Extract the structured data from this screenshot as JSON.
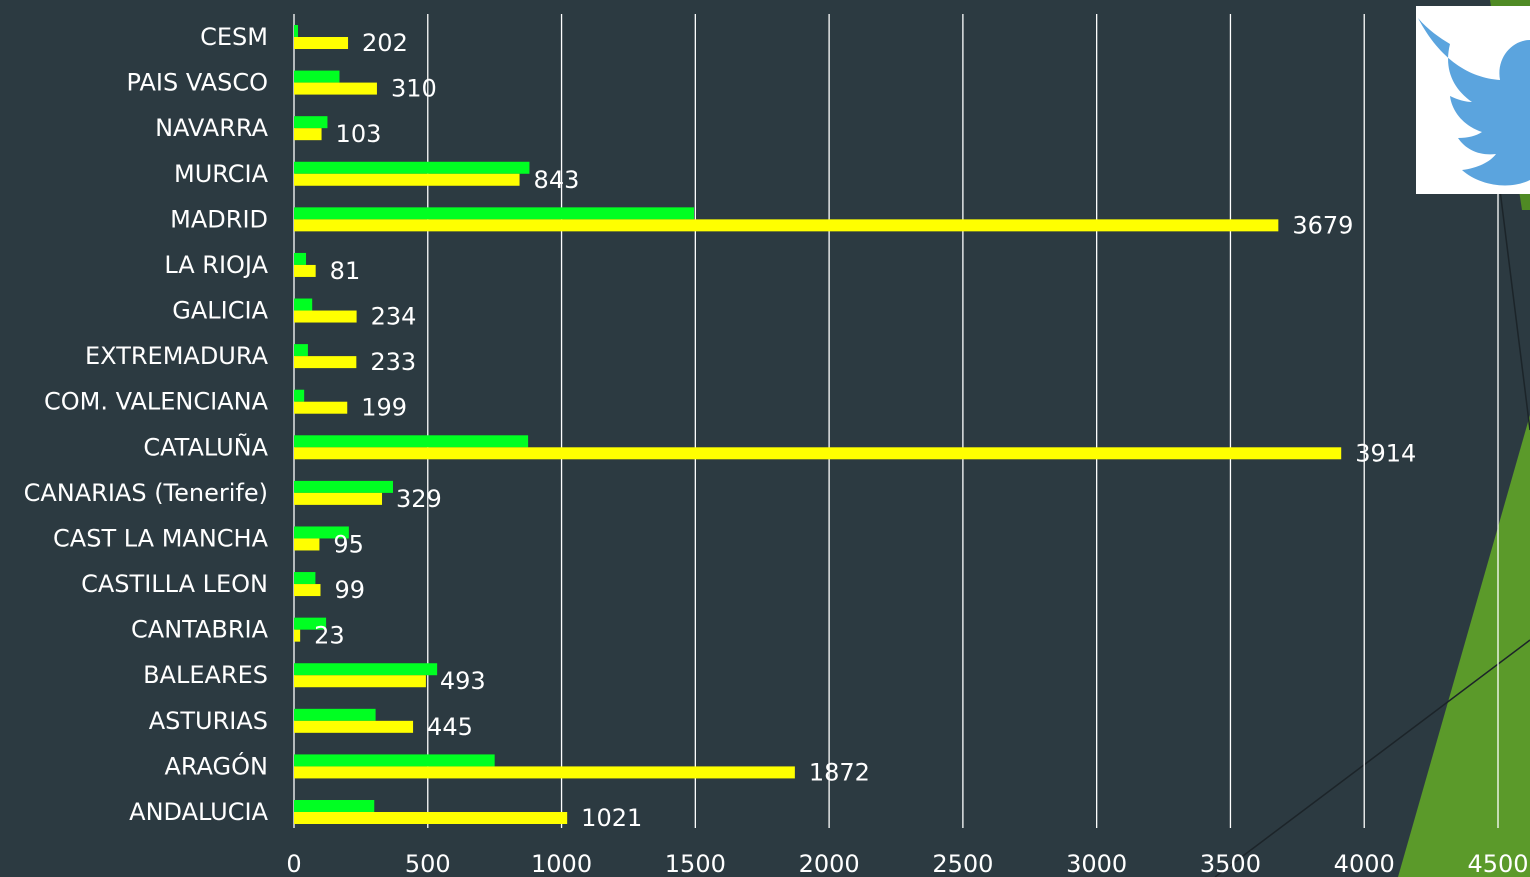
{
  "chart_data": {
    "type": "bar",
    "orientation": "horizontal",
    "categories": [
      "ANDALUCIA",
      "ARAGÓN",
      "ASTURIAS",
      "BALEARES",
      "CANTABRIA",
      "CASTILLA LEON",
      "CAST LA MANCHA",
      "CANARIAS (Tenerife)",
      "CATALUÑA",
      "COM. VALENCIANA",
      "EXTREMADURA",
      "GALICIA",
      "LA RIOJA",
      "MADRID",
      "MURCIA",
      "NAVARRA",
      "PAIS VASCO",
      "CESM"
    ],
    "series": [
      {
        "color": "#00ff22",
        "values": [
          300,
          750,
          305,
          535,
          120,
          80,
          205,
          370,
          875,
          38,
          52,
          68,
          45,
          1495,
          880,
          125,
          170,
          15
        ]
      },
      {
        "color": "#ffff00",
        "values": [
          1021,
          1872,
          445,
          493,
          23,
          99,
          95,
          329,
          3914,
          199,
          233,
          234,
          81,
          3679,
          843,
          103,
          310,
          202
        ],
        "data_labels": [
          "1021",
          "1872",
          "445",
          "493",
          "23",
          "99",
          "95",
          "329",
          "3914",
          "199",
          "233",
          "234",
          "81",
          "3679",
          "843",
          "103",
          "310",
          "202"
        ]
      }
    ],
    "xlim": [
      0,
      4500
    ],
    "xticks": [
      "0",
      "500",
      "1000",
      "1500",
      "2000",
      "2500",
      "3000",
      "3500",
      "4000",
      "4500"
    ],
    "grid": true,
    "gridline_color": "#ffffff"
  },
  "decor": {
    "bird_icon": "twitter-bird-icon",
    "accent_color": "#5b9a2a",
    "icon_color": "#5ba4de"
  }
}
